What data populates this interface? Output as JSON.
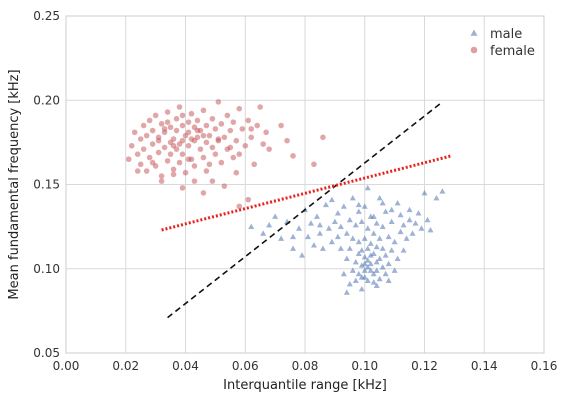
{
  "chart_data": {
    "type": "scatter",
    "xlabel": "Interquantile range [kHz]",
    "ylabel": "Mean fundamental frequency [kHz]",
    "xlim": [
      0.0,
      0.16
    ],
    "ylim": [
      0.05,
      0.25
    ],
    "xticks": [
      "0.00",
      "0.02",
      "0.04",
      "0.06",
      "0.08",
      "0.10",
      "0.12",
      "0.14",
      "0.16"
    ],
    "yticks": [
      "0.05",
      "0.10",
      "0.15",
      "0.20",
      "0.25"
    ],
    "grid": true,
    "legend_position": "top-right",
    "series": [
      {
        "name": "male",
        "marker": "triangle",
        "color": "#4c72b0",
        "points": [
          [
            0.062,
            0.125
          ],
          [
            0.066,
            0.121
          ],
          [
            0.07,
            0.131
          ],
          [
            0.072,
            0.118
          ],
          [
            0.074,
            0.128
          ],
          [
            0.076,
            0.112
          ],
          [
            0.078,
            0.124
          ],
          [
            0.079,
            0.108
          ],
          [
            0.08,
            0.135
          ],
          [
            0.081,
            0.119
          ],
          [
            0.082,
            0.127
          ],
          [
            0.083,
            0.114
          ],
          [
            0.084,
            0.131
          ],
          [
            0.085,
            0.121
          ],
          [
            0.086,
            0.112
          ],
          [
            0.087,
            0.138
          ],
          [
            0.088,
            0.124
          ],
          [
            0.089,
            0.116
          ],
          [
            0.089,
            0.141
          ],
          [
            0.09,
            0.128
          ],
          [
            0.091,
            0.119
          ],
          [
            0.091,
            0.133
          ],
          [
            0.092,
            0.112
          ],
          [
            0.092,
            0.125
          ],
          [
            0.093,
            0.097
          ],
          [
            0.093,
            0.137
          ],
          [
            0.094,
            0.106
          ],
          [
            0.094,
            0.121
          ],
          [
            0.095,
            0.091
          ],
          [
            0.095,
            0.129
          ],
          [
            0.095,
            0.112
          ],
          [
            0.096,
            0.099
          ],
          [
            0.096,
            0.142
          ],
          [
            0.096,
            0.118
          ],
          [
            0.097,
            0.104
          ],
          [
            0.097,
            0.093
          ],
          [
            0.097,
            0.126
          ],
          [
            0.098,
            0.109
          ],
          [
            0.098,
            0.097
          ],
          [
            0.098,
            0.134
          ],
          [
            0.098,
            0.116
          ],
          [
            0.099,
            0.102
          ],
          [
            0.099,
            0.111
          ],
          [
            0.099,
            0.095
          ],
          [
            0.099,
            0.128
          ],
          [
            0.1,
            0.099
          ],
          [
            0.1,
            0.107
          ],
          [
            0.1,
            0.118
          ],
          [
            0.1,
            0.103
          ],
          [
            0.1,
            0.137
          ],
          [
            0.1,
            0.095
          ],
          [
            0.101,
            0.101
          ],
          [
            0.101,
            0.112
          ],
          [
            0.101,
            0.105
          ],
          [
            0.101,
            0.124
          ],
          [
            0.101,
            0.093
          ],
          [
            0.102,
            0.099
          ],
          [
            0.102,
            0.108
          ],
          [
            0.102,
            0.115
          ],
          [
            0.102,
            0.131
          ],
          [
            0.102,
            0.103
          ],
          [
            0.103,
            0.097
          ],
          [
            0.103,
            0.109
          ],
          [
            0.103,
            0.121
          ],
          [
            0.103,
            0.092
          ],
          [
            0.104,
            0.104
          ],
          [
            0.104,
            0.113
          ],
          [
            0.104,
            0.099
          ],
          [
            0.104,
            0.127
          ],
          [
            0.105,
            0.106
          ],
          [
            0.105,
            0.094
          ],
          [
            0.105,
            0.118
          ],
          [
            0.105,
            0.142
          ],
          [
            0.106,
            0.101
          ],
          [
            0.106,
            0.112
          ],
          [
            0.106,
            0.125
          ],
          [
            0.107,
            0.097
          ],
          [
            0.107,
            0.108
          ],
          [
            0.107,
            0.134
          ],
          [
            0.108,
            0.103
          ],
          [
            0.108,
            0.119
          ],
          [
            0.108,
            0.093
          ],
          [
            0.109,
            0.111
          ],
          [
            0.109,
            0.128
          ],
          [
            0.11,
            0.099
          ],
          [
            0.11,
            0.116
          ],
          [
            0.111,
            0.106
          ],
          [
            0.111,
            0.139
          ],
          [
            0.112,
            0.122
          ],
          [
            0.112,
            0.132
          ],
          [
            0.113,
            0.111
          ],
          [
            0.113,
            0.126
          ],
          [
            0.114,
            0.118
          ],
          [
            0.115,
            0.129
          ],
          [
            0.115,
            0.135
          ],
          [
            0.116,
            0.121
          ],
          [
            0.117,
            0.127
          ],
          [
            0.118,
            0.133
          ],
          [
            0.119,
            0.124
          ],
          [
            0.12,
            0.145
          ],
          [
            0.121,
            0.129
          ],
          [
            0.122,
            0.123
          ],
          [
            0.124,
            0.142
          ],
          [
            0.126,
            0.146
          ],
          [
            0.101,
            0.148
          ],
          [
            0.098,
            0.138
          ],
          [
            0.103,
            0.131
          ],
          [
            0.106,
            0.139
          ],
          [
            0.109,
            0.135
          ],
          [
            0.085,
            0.126
          ],
          [
            0.076,
            0.119
          ],
          [
            0.068,
            0.126
          ],
          [
            0.094,
            0.086
          ],
          [
            0.099,
            0.088
          ],
          [
            0.104,
            0.09
          ]
        ]
      },
      {
        "name": "female",
        "marker": "circle",
        "color": "#c44e52",
        "points": [
          [
            0.021,
            0.165
          ],
          [
            0.022,
            0.173
          ],
          [
            0.023,
            0.181
          ],
          [
            0.024,
            0.168
          ],
          [
            0.025,
            0.177
          ],
          [
            0.025,
            0.162
          ],
          [
            0.026,
            0.185
          ],
          [
            0.026,
            0.171
          ],
          [
            0.027,
            0.158
          ],
          [
            0.027,
            0.179
          ],
          [
            0.028,
            0.188
          ],
          [
            0.028,
            0.166
          ],
          [
            0.029,
            0.174
          ],
          [
            0.029,
            0.182
          ],
          [
            0.03,
            0.161
          ],
          [
            0.03,
            0.191
          ],
          [
            0.031,
            0.169
          ],
          [
            0.031,
            0.178
          ],
          [
            0.032,
            0.186
          ],
          [
            0.032,
            0.155
          ],
          [
            0.033,
            0.172
          ],
          [
            0.033,
            0.181
          ],
          [
            0.034,
            0.164
          ],
          [
            0.034,
            0.193
          ],
          [
            0.035,
            0.175
          ],
          [
            0.035,
            0.168
          ],
          [
            0.035,
            0.184
          ],
          [
            0.036,
            0.159
          ],
          [
            0.036,
            0.177
          ],
          [
            0.037,
            0.189
          ],
          [
            0.037,
            0.171
          ],
          [
            0.037,
            0.182
          ],
          [
            0.038,
            0.163
          ],
          [
            0.038,
            0.196
          ],
          [
            0.039,
            0.176
          ],
          [
            0.039,
            0.185
          ],
          [
            0.039,
            0.168
          ],
          [
            0.04,
            0.179
          ],
          [
            0.04,
            0.157
          ],
          [
            0.041,
            0.187
          ],
          [
            0.041,
            0.173
          ],
          [
            0.041,
            0.181
          ],
          [
            0.042,
            0.165
          ],
          [
            0.042,
            0.192
          ],
          [
            0.043,
            0.176
          ],
          [
            0.043,
            0.184
          ],
          [
            0.043,
            0.161
          ],
          [
            0.044,
            0.178
          ],
          [
            0.044,
            0.188
          ],
          [
            0.045,
            0.171
          ],
          [
            0.045,
            0.182
          ],
          [
            0.046,
            0.166
          ],
          [
            0.046,
            0.194
          ],
          [
            0.047,
            0.175
          ],
          [
            0.047,
            0.185
          ],
          [
            0.048,
            0.162
          ],
          [
            0.048,
            0.179
          ],
          [
            0.049,
            0.189
          ],
          [
            0.049,
            0.172
          ],
          [
            0.05,
            0.183
          ],
          [
            0.05,
            0.168
          ],
          [
            0.051,
            0.199
          ],
          [
            0.051,
            0.177
          ],
          [
            0.052,
            0.186
          ],
          [
            0.052,
            0.163
          ],
          [
            0.053,
            0.178
          ],
          [
            0.054,
            0.191
          ],
          [
            0.054,
            0.171
          ],
          [
            0.055,
            0.182
          ],
          [
            0.056,
            0.166
          ],
          [
            0.056,
            0.187
          ],
          [
            0.057,
            0.176
          ],
          [
            0.058,
            0.195
          ],
          [
            0.058,
            0.168
          ],
          [
            0.059,
            0.183
          ],
          [
            0.06,
            0.173
          ],
          [
            0.061,
            0.188
          ],
          [
            0.062,
            0.178
          ],
          [
            0.063,
            0.162
          ],
          [
            0.064,
            0.185
          ],
          [
            0.065,
            0.196
          ],
          [
            0.067,
            0.181
          ],
          [
            0.068,
            0.171
          ],
          [
            0.072,
            0.185
          ],
          [
            0.074,
            0.176
          ],
          [
            0.076,
            0.167
          ],
          [
            0.057,
            0.157
          ],
          [
            0.053,
            0.149
          ],
          [
            0.049,
            0.152
          ],
          [
            0.046,
            0.145
          ],
          [
            0.043,
            0.152
          ],
          [
            0.039,
            0.148
          ],
          [
            0.036,
            0.156
          ],
          [
            0.032,
            0.152
          ],
          [
            0.061,
            0.141
          ],
          [
            0.058,
            0.137
          ],
          [
            0.041,
            0.165
          ],
          [
            0.036,
            0.173
          ],
          [
            0.044,
            0.182
          ],
          [
            0.051,
            0.176
          ],
          [
            0.047,
            0.158
          ],
          [
            0.055,
            0.172
          ],
          [
            0.039,
            0.191
          ],
          [
            0.034,
            0.187
          ],
          [
            0.029,
            0.163
          ],
          [
            0.024,
            0.158
          ],
          [
            0.062,
            0.183
          ],
          [
            0.066,
            0.174
          ],
          [
            0.083,
            0.162
          ],
          [
            0.086,
            0.178
          ],
          [
            0.038,
            0.174
          ],
          [
            0.042,
            0.177
          ],
          [
            0.046,
            0.179
          ],
          [
            0.031,
            0.176
          ],
          [
            0.033,
            0.183
          ]
        ]
      }
    ],
    "lines": [
      {
        "style": "dashed",
        "color": "#111111",
        "x": [
          0.034,
          0.126
        ],
        "y": [
          0.071,
          0.199
        ]
      },
      {
        "style": "dotted",
        "color": "#e8211d",
        "x": [
          0.032,
          0.129
        ],
        "y": [
          0.123,
          0.167
        ]
      }
    ]
  }
}
